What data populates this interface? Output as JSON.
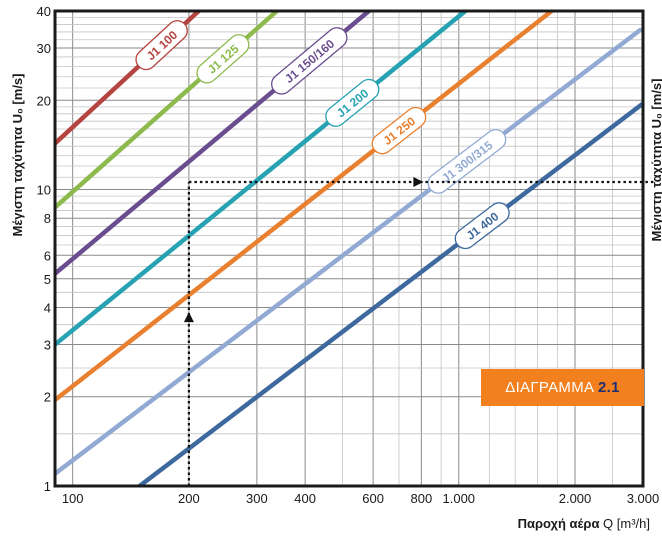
{
  "chart_data": {
    "type": "line",
    "xscale": "log",
    "yscale": "log",
    "xlim": [
      90,
      3000
    ],
    "ylim": [
      1,
      40
    ],
    "ylabel": "Μέγιστη ταχύτητα U₀ [m/s]",
    "ylabel_right_partial": "Μέγιστη ταχύτητα U₀ [m/s]",
    "xlabel_bold": "Παροχή αέρα",
    "xlabel_rest": " Q [m³/h]",
    "x_ticks": [
      {
        "value": 100,
        "label": "100"
      },
      {
        "value": 200,
        "label": "200"
      },
      {
        "value": 300,
        "label": "300"
      },
      {
        "value": 400,
        "label": "400"
      },
      {
        "value": 600,
        "label": "600"
      },
      {
        "value": 800,
        "label": "800"
      },
      {
        "value": 1000,
        "label": "1.000"
      },
      {
        "value": 2000,
        "label": "2.000"
      },
      {
        "value": 3000,
        "label": "3.000"
      }
    ],
    "y_ticks": [
      {
        "value": 1,
        "label": "1"
      },
      {
        "value": 2,
        "label": "2"
      },
      {
        "value": 3,
        "label": "3"
      },
      {
        "value": 4,
        "label": "4"
      },
      {
        "value": 5,
        "label": "5"
      },
      {
        "value": 6,
        "label": "6"
      },
      {
        "value": 8,
        "label": "8"
      },
      {
        "value": 10,
        "label": "10"
      },
      {
        "value": 20,
        "label": "20"
      },
      {
        "value": 30,
        "label": "30"
      },
      {
        "value": 40,
        "label": "40"
      }
    ],
    "grid": true,
    "series": [
      {
        "name": "J1 100",
        "color": "#b5433f",
        "points": [
          [
            90,
            14.3
          ],
          [
            212,
            40
          ]
        ],
        "label_at": 170
      },
      {
        "name": "J1 125",
        "color": "#8dba4d",
        "points": [
          [
            90,
            8.7
          ],
          [
            338,
            40
          ]
        ],
        "label_at": 245
      },
      {
        "name": "J1 150/160",
        "color": "#6a4d8f",
        "points": [
          [
            90,
            5.2
          ],
          [
            585,
            40
          ]
        ],
        "label_at": 410
      },
      {
        "name": "J1 200",
        "color": "#27a2b3",
        "points": [
          [
            90,
            3.0
          ],
          [
            1040,
            40
          ]
        ],
        "label_at": 530
      },
      {
        "name": "J1 250",
        "color": "#e9802f",
        "points": [
          [
            90,
            1.95
          ],
          [
            1740,
            40
          ]
        ],
        "label_at": 700
      },
      {
        "name": "J1 300/315",
        "color": "#92aad3",
        "points": [
          [
            90,
            1.1
          ],
          [
            2950,
            34.5
          ]
        ],
        "label_at": 1050
      },
      {
        "name": "J1 400",
        "color": "#3e699e",
        "points": [
          [
            143,
            0.96
          ],
          [
            3000,
            19.5
          ]
        ],
        "label_at": 1150
      }
    ],
    "example": {
      "x": 200,
      "y_start": 3.8,
      "y_end": 10.6
    }
  },
  "badge": {
    "prefix": "ΔΙΑΓΡΑΜΜΑ ",
    "number": "2.1"
  }
}
